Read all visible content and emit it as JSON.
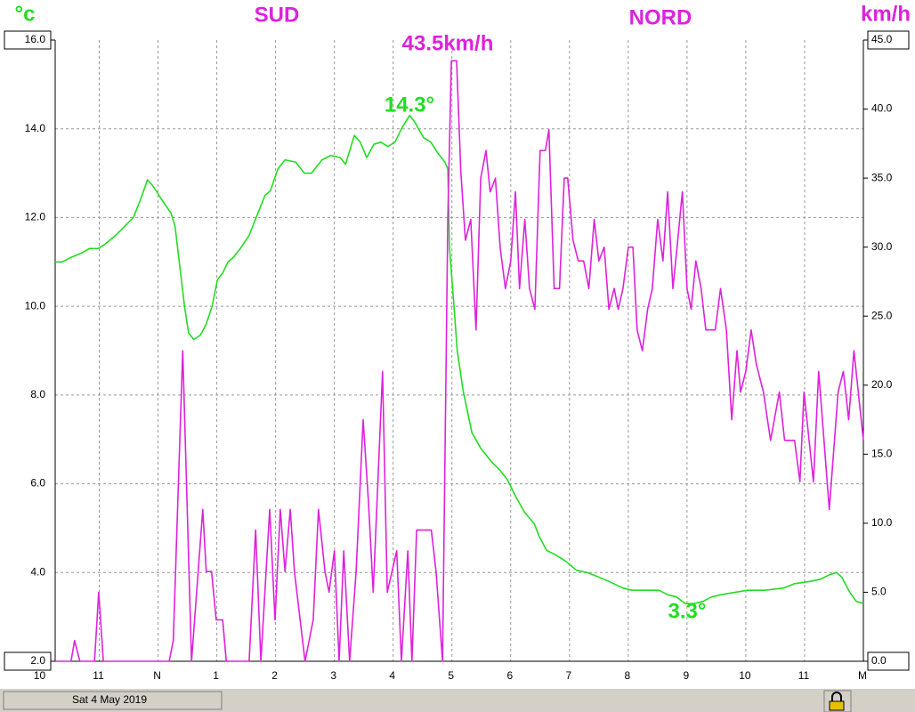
{
  "chart_data": {
    "type": "line",
    "y_unit": "°c",
    "y2_unit": "km/h",
    "sections": [
      "SUD",
      "NORD"
    ],
    "annotations": [
      "43.5km/h",
      "14.3°",
      "3.3°"
    ],
    "date_label": "Sat 4 May 2019",
    "xlim": [
      10.25,
      24
    ],
    "xticks": [
      10,
      11,
      {
        "value": 12,
        "label": "N"
      },
      {
        "value": 13,
        "label": "1"
      },
      {
        "value": 14,
        "label": "2"
      },
      {
        "value": 15,
        "label": "3"
      },
      {
        "value": 16,
        "label": "4"
      },
      {
        "value": 17,
        "label": "5"
      },
      {
        "value": 18,
        "label": "6"
      },
      {
        "value": 19,
        "label": "7"
      },
      {
        "value": 20,
        "label": "8"
      },
      {
        "value": 21,
        "label": "9"
      },
      {
        "value": 22,
        "label": "10"
      },
      {
        "value": 23,
        "label": "11"
      },
      {
        "value": 24,
        "label": "M"
      }
    ],
    "ylim": [
      2,
      16
    ],
    "yticks": [
      {
        "value": 2,
        "label": "2.0"
      },
      {
        "value": 4,
        "label": "4.0"
      },
      {
        "value": 6,
        "label": "6.0"
      },
      {
        "value": 8,
        "label": "8.0"
      },
      {
        "value": 10,
        "label": "10.0"
      },
      {
        "value": 12,
        "label": "12.0"
      },
      {
        "value": 14,
        "label": "14.0"
      },
      {
        "value": 16,
        "label": "16.0"
      }
    ],
    "y2lim": [
      0,
      45
    ],
    "y2ticks": [
      {
        "value": 0,
        "label": "0.0"
      },
      {
        "value": 5,
        "label": "5.0"
      },
      {
        "value": 10,
        "label": "10.0"
      },
      {
        "value": 15,
        "label": "15.0"
      },
      {
        "value": 20,
        "label": "20.0"
      },
      {
        "value": 25,
        "label": "25.0"
      },
      {
        "value": 30,
        "label": "30.0"
      },
      {
        "value": 35,
        "label": "35.0"
      },
      {
        "value": 40,
        "label": "40.0"
      },
      {
        "value": 45,
        "label": "45.0"
      }
    ],
    "grid": true,
    "series": [
      {
        "color": "#22dd22",
        "x": [
          10.25,
          10.37,
          10.52,
          10.7,
          10.83,
          10.98,
          11.1,
          11.28,
          11.43,
          11.58,
          11.7,
          11.82,
          11.92,
          12.04,
          12.22,
          12.29,
          12.37,
          12.45,
          12.52,
          12.61,
          12.72,
          12.82,
          12.92,
          13.01,
          13.1,
          13.19,
          13.28,
          13.4,
          13.55,
          13.7,
          13.82,
          13.91,
          14.04,
          14.16,
          14.34,
          14.49,
          14.61,
          14.79,
          14.94,
          15.1,
          15.19,
          15.34,
          15.44,
          15.55,
          15.67,
          15.79,
          15.91,
          16.03,
          16.16,
          16.28,
          16.37,
          16.43,
          16.52,
          16.64,
          16.76,
          16.88,
          16.93,
          16.96,
          17.03,
          17.09,
          17.19,
          17.34,
          17.49,
          17.67,
          17.82,
          17.94,
          18.09,
          18.24,
          18.4,
          18.49,
          18.61,
          18.76,
          18.94,
          19.12,
          19.3,
          19.49,
          19.67,
          19.91,
          20.06,
          20.21,
          20.52,
          20.67,
          20.82,
          20.97,
          21.12,
          21.27,
          21.42,
          21.58,
          21.8,
          22.03,
          22.18,
          22.33,
          22.64,
          22.83,
          23.09,
          23.27,
          23.42,
          23.54,
          23.63,
          23.77,
          23.88,
          24
        ],
        "values": [
          11,
          11,
          11.1,
          11.2,
          11.3,
          11.3,
          11.4,
          11.6,
          11.8,
          12,
          12.4,
          12.85,
          12.7,
          12.45,
          12.1,
          11.8,
          10.9,
          10,
          9.4,
          9.25,
          9.35,
          9.6,
          10,
          10.6,
          10.75,
          11,
          11.1,
          11.3,
          11.6,
          12.1,
          12.5,
          12.6,
          13.1,
          13.3,
          13.25,
          13,
          13,
          13.3,
          13.4,
          13.35,
          13.2,
          13.85,
          13.7,
          13.35,
          13.65,
          13.7,
          13.6,
          13.7,
          14.05,
          14.3,
          14.15,
          14,
          13.8,
          13.7,
          13.45,
          13.25,
          13.1,
          11.3,
          10.1,
          9,
          8.1,
          7.15,
          6.8,
          6.5,
          6.3,
          6.1,
          5.7,
          5.35,
          5.1,
          4.8,
          4.5,
          4.4,
          4.25,
          4.05,
          4,
          3.9,
          3.8,
          3.65,
          3.6,
          3.6,
          3.6,
          3.5,
          3.45,
          3.3,
          3.3,
          3.35,
          3.45,
          3.5,
          3.55,
          3.6,
          3.6,
          3.6,
          3.65,
          3.75,
          3.8,
          3.85,
          3.95,
          4,
          3.9,
          3.55,
          3.35,
          3.3
        ]
      },
      {
        "color": "#dd22dd",
        "axis": "y2",
        "x": [
          10.25,
          10.52,
          10.58,
          10.67,
          10.92,
          10.99,
          11.07,
          12.19,
          12.26,
          12.42,
          12.57,
          12.76,
          12.82,
          12.91,
          12.99,
          13.1,
          13.16,
          13.55,
          13.66,
          13.75,
          13.9,
          13.99,
          14.08,
          14.16,
          14.25,
          14.32,
          14.5,
          14.64,
          14.73,
          14.84,
          14.91,
          15,
          15.08,
          15.16,
          15.26,
          15.37,
          15.49,
          15.58,
          15.66,
          15.82,
          15.9,
          16.06,
          16.14,
          16.25,
          16.32,
          16.4,
          16.65,
          16.73,
          16.84,
          16.93,
          16.99,
          17.08,
          17.15,
          17.23,
          17.32,
          17.41,
          17.49,
          17.58,
          17.65,
          17.74,
          17.82,
          17.91,
          18,
          18.08,
          18.15,
          18.24,
          18.32,
          18.41,
          18.5,
          18.59,
          18.65,
          18.74,
          18.83,
          18.91,
          18.97,
          19.06,
          19.15,
          19.24,
          19.33,
          19.42,
          19.5,
          19.59,
          19.67,
          19.76,
          19.83,
          19.91,
          20,
          20.08,
          20.15,
          20.24,
          20.33,
          20.41,
          20.5,
          20.59,
          20.67,
          20.76,
          20.83,
          20.92,
          21,
          21.07,
          21.15,
          21.24,
          21.32,
          21.48,
          21.57,
          21.67,
          21.76,
          21.85,
          21.91,
          22,
          22.09,
          22.18,
          22.3,
          22.42,
          22.57,
          22.66,
          22.83,
          22.92,
          22.99,
          23.15,
          23.24,
          23.42,
          23.57,
          23.66,
          23.75,
          23.84,
          24
        ],
        "values": [
          0,
          0,
          1.5,
          0,
          0,
          5,
          0,
          0,
          1.5,
          22.5,
          0,
          11,
          6.5,
          6.5,
          3,
          3,
          0,
          0,
          9.5,
          0,
          11,
          3,
          11,
          6.5,
          11,
          6.5,
          0,
          3,
          11,
          6.5,
          5,
          8,
          0,
          8,
          0,
          6.5,
          17.5,
          11.5,
          5,
          21,
          5,
          8,
          0,
          8,
          0,
          9.5,
          9.5,
          6.5,
          0,
          32,
          43.5,
          43.5,
          35.5,
          30.5,
          32,
          24,
          35,
          37,
          34,
          35,
          30,
          27,
          29,
          34,
          27,
          32,
          27,
          25.5,
          37,
          37,
          38.5,
          27,
          27,
          35,
          35,
          30.5,
          29,
          29,
          27,
          32,
          29,
          30,
          25.5,
          27,
          25.5,
          27,
          30,
          30,
          24,
          22.5,
          25.5,
          27,
          32,
          29,
          34,
          27,
          30,
          34,
          27,
          25.5,
          29,
          27,
          24,
          24,
          27,
          24,
          17.5,
          22.5,
          19.5,
          21,
          24,
          21.5,
          19.5,
          16,
          19.5,
          16,
          16,
          13,
          19.5,
          13,
          21,
          11,
          19.5,
          21,
          17.5,
          22.5,
          16
        ]
      }
    ]
  }
}
